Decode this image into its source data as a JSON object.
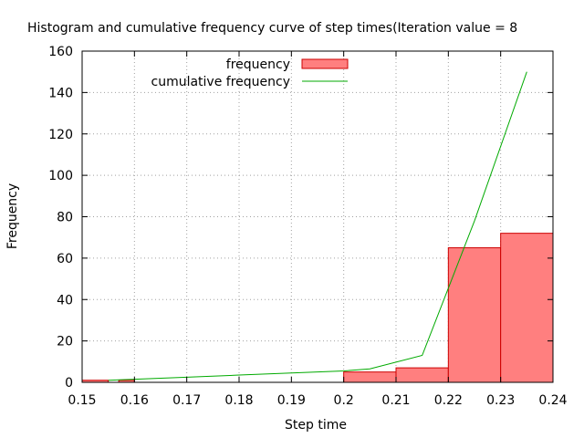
{
  "chart_data": {
    "type": "bar",
    "title": "Histogram and cumulative frequency curve of step times(Iteration value = 8",
    "xlabel": "Step time",
    "ylabel": "Frequency",
    "xlim": [
      0.15,
      0.24
    ],
    "ylim": [
      0,
      160
    ],
    "grid": true,
    "legend_position": "top-center",
    "x_ticks": [
      "0.15",
      "0.16",
      "0.17",
      "0.18",
      "0.19",
      "0.2",
      "0.21",
      "0.22",
      "0.23",
      "0.24"
    ],
    "y_ticks": [
      "0",
      "20",
      "40",
      "60",
      "80",
      "100",
      "120",
      "140",
      "160"
    ],
    "series": [
      {
        "name": "frequency",
        "kind": "bar",
        "color": "#ff7f7f",
        "edge_color": "#cc0000",
        "bins": [
          {
            "x0": 0.15,
            "x1": 0.155,
            "value": 1
          },
          {
            "x0": 0.157,
            "x1": 0.16,
            "value": 1
          },
          {
            "x0": 0.2,
            "x1": 0.21,
            "value": 5
          },
          {
            "x0": 0.21,
            "x1": 0.22,
            "value": 7
          },
          {
            "x0": 0.22,
            "x1": 0.23,
            "value": 65
          },
          {
            "x0": 0.23,
            "x1": 0.24,
            "value": 72
          }
        ]
      },
      {
        "name": "cumulative frequency",
        "kind": "line",
        "color": "#00aa00",
        "x": [
          0.155,
          0.16,
          0.17,
          0.18,
          0.19,
          0.2,
          0.205,
          0.215,
          0.225,
          0.235
        ],
        "values": [
          1,
          1.5,
          2.5,
          3.5,
          4.5,
          5.5,
          6.5,
          13,
          78,
          150
        ]
      }
    ]
  }
}
